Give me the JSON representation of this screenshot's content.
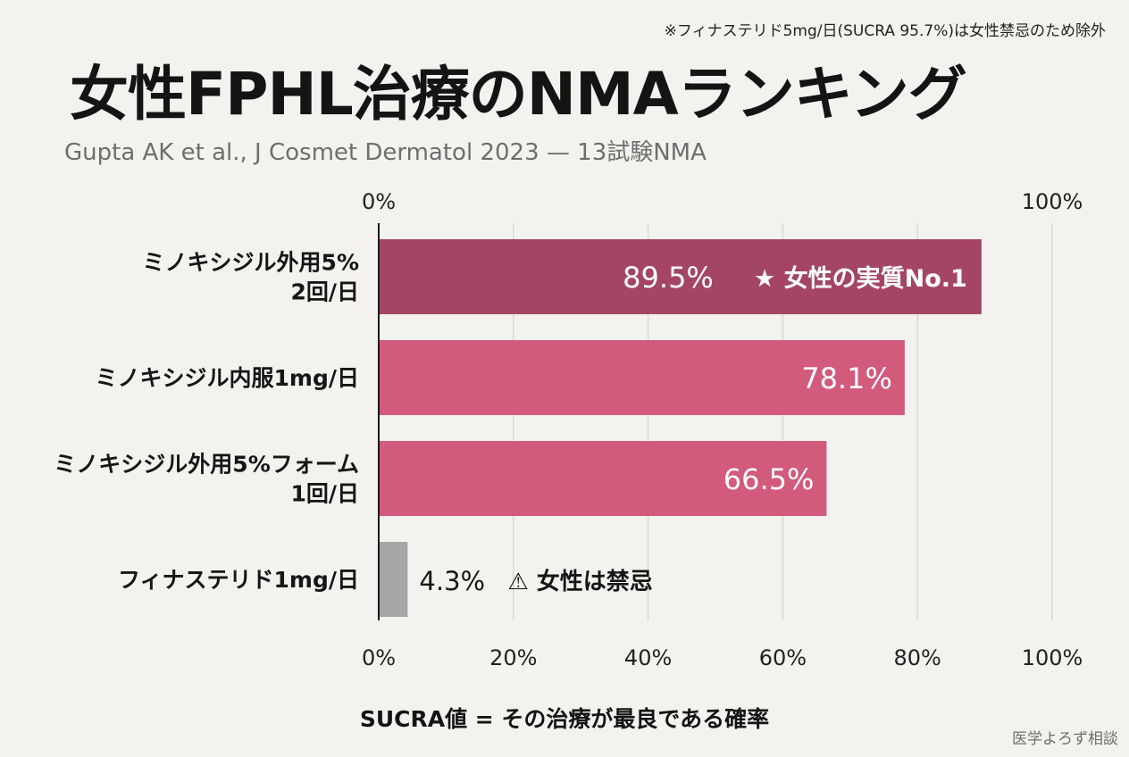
{
  "note": "※フィナステリド5mg/日(SUCRA 95.7%)は女性禁忌のため除外",
  "title": "女性FPHL治療のNMAランキング",
  "subtitle": "Gupta AK et al., J Cosmet Dermatol 2023 — 13試験NMA",
  "footer_label": "SUCRA値 = その治療が最良である確率",
  "brand": "医学よろず相談",
  "chart_data": {
    "type": "bar",
    "orientation": "horizontal",
    "categories": [
      [
        "ミノキシジル外用5%",
        "2回/日"
      ],
      [
        "ミノキシジル内服1mg/日"
      ],
      [
        "ミノキシジル外用5%フォーム",
        "1回/日"
      ],
      [
        "フィナステリド1mg/日"
      ]
    ],
    "values": [
      89.5,
      78.1,
      66.5,
      4.3
    ],
    "value_labels": [
      "89.5%",
      "78.1%",
      "66.5%",
      "4.3%"
    ],
    "annotations": [
      "★ 女性の実質No.1",
      "",
      "",
      "⚠ 女性は禁忌"
    ],
    "colors": [
      "#a54566",
      "#d25a7b",
      "#d25a7b",
      "#a6a6a6"
    ],
    "xlim": [
      0,
      100
    ],
    "top_ticks": [
      "0%",
      "100%"
    ],
    "bottom_ticks": [
      "0%",
      "20%",
      "40%",
      "60%",
      "80%",
      "100%"
    ],
    "grid": true,
    "xlabel": "SUCRA値 = その治療が最良である確率"
  }
}
